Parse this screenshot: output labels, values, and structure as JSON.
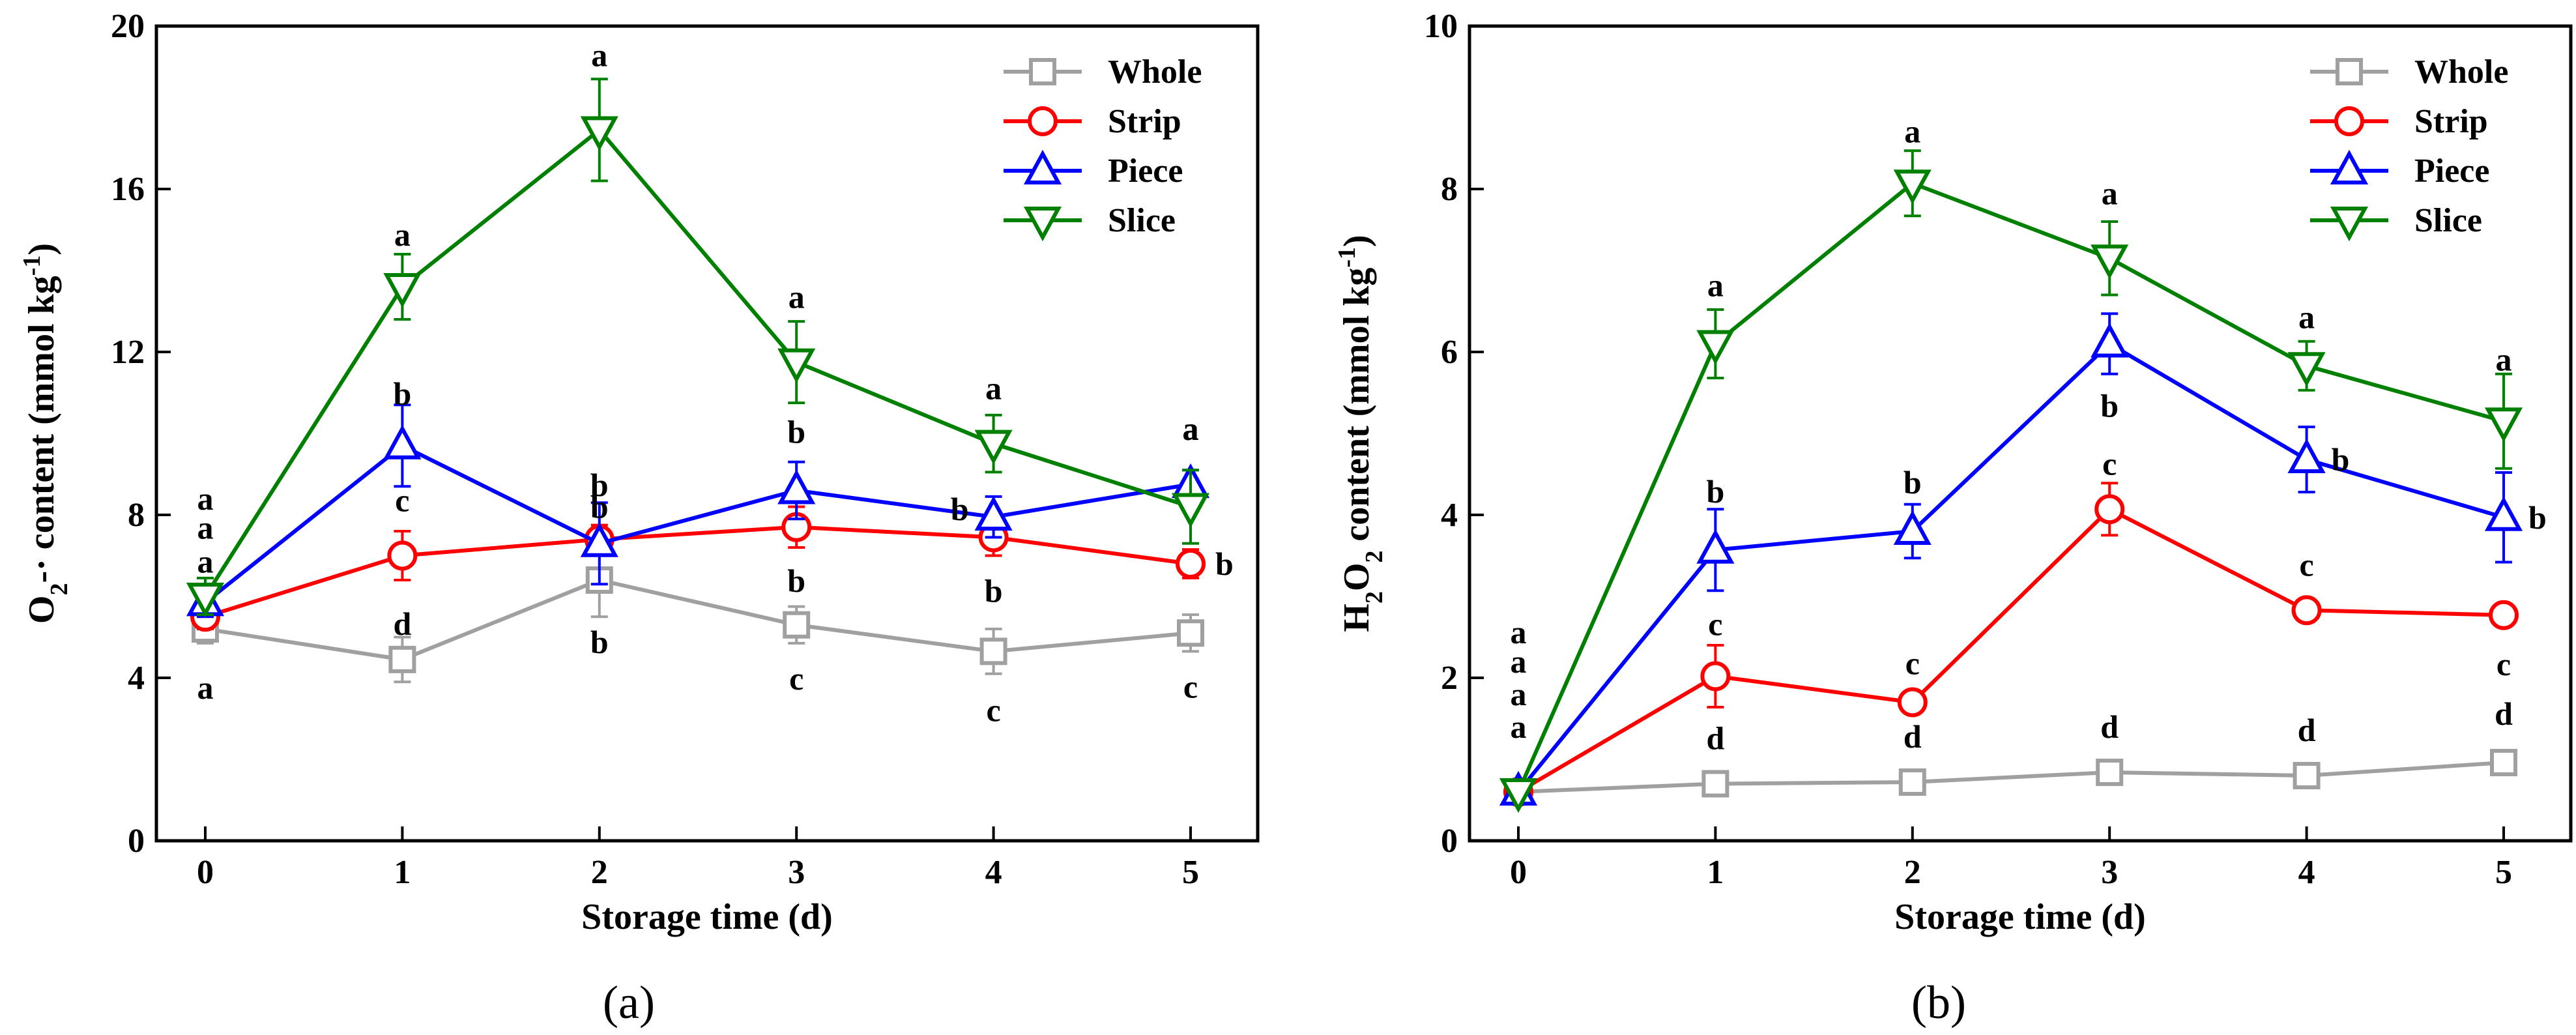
{
  "chart_data": [
    {
      "type": "line",
      "panel_label": "(a)",
      "xlabel": "Storage time (d)",
      "ylabel": "O2-· content (mmol kg-1)",
      "ylabel_parts": {
        "p1": "O",
        "sub": "2",
        "p2": "-· content (mmol kg",
        "sup": "-1",
        "p3": ")"
      },
      "x": [
        0,
        1,
        2,
        3,
        4,
        5
      ],
      "x_tick_labels": [
        "0",
        "1",
        "2",
        "3",
        "4",
        "5"
      ],
      "ylim": [
        0,
        20
      ],
      "y_ticks": [
        0,
        4,
        8,
        12,
        16,
        20
      ],
      "y_tick_labels": [
        "0",
        "4",
        "8",
        "12",
        "16",
        "20"
      ],
      "legend_position": "top-right",
      "series": [
        {
          "name": "Whole",
          "color": "#a0a0a0",
          "marker": "square",
          "values": [
            5.2,
            4.45,
            6.4,
            5.3,
            4.65,
            5.1
          ],
          "errors": [
            0.35,
            0.55,
            0.9,
            0.45,
            0.55,
            0.45
          ],
          "letters": [
            "a",
            "d",
            "b",
            "c",
            "c",
            "c"
          ]
        },
        {
          "name": "Strip",
          "color": "#ff0000",
          "marker": "circle",
          "values": [
            5.5,
            7.0,
            7.4,
            7.7,
            7.45,
            6.8
          ],
          "errors": [
            0.3,
            0.6,
            0.35,
            0.5,
            0.45,
            0.35
          ],
          "letters": [
            "a",
            "c",
            "b",
            "b",
            "b",
            "b"
          ]
        },
        {
          "name": "Piece",
          "color": "#0000ff",
          "marker": "triangle-up",
          "values": [
            5.85,
            9.7,
            7.3,
            8.6,
            7.95,
            8.75
          ],
          "errors": [
            0.35,
            1.0,
            1.0,
            0.7,
            0.5,
            0.35
          ],
          "letters": [
            "a",
            "b",
            "b",
            "b",
            "b",
            "a"
          ]
        },
        {
          "name": "Slice",
          "color": "#008000",
          "marker": "triangle-down",
          "values": [
            6.0,
            13.6,
            17.45,
            11.75,
            9.75,
            8.2
          ],
          "errors": [
            0.45,
            0.8,
            1.25,
            1.0,
            0.7,
            0.9
          ],
          "letters": [
            "a",
            "a",
            "a",
            "a",
            "a",
            "a"
          ]
        }
      ]
    },
    {
      "type": "line",
      "panel_label": "(b)",
      "xlabel": "Storage time (d)",
      "ylabel": "H2O2 content (mmol kg-1)",
      "ylabel_parts": {
        "p1": "H",
        "sub1": "2",
        "p2": "O",
        "sub2": "2",
        "p3": " content (mmol kg",
        "sup": "-1",
        "p4": ")"
      },
      "x": [
        0,
        1,
        2,
        3,
        4,
        5
      ],
      "x_tick_labels": [
        "0",
        "1",
        "2",
        "3",
        "4",
        "5"
      ],
      "ylim": [
        0,
        10
      ],
      "y_ticks": [
        0,
        2,
        4,
        6,
        8,
        10
      ],
      "y_tick_labels": [
        "0",
        "2",
        "4",
        "6",
        "8",
        "10"
      ],
      "legend_position": "top-right",
      "series": [
        {
          "name": "Whole",
          "color": "#a0a0a0",
          "marker": "square",
          "values": [
            0.6,
            0.7,
            0.72,
            0.84,
            0.8,
            0.96
          ],
          "errors": [
            0.05,
            0.06,
            0.06,
            0.06,
            0.06,
            0.08
          ],
          "letters": [
            "a",
            "d",
            "d",
            "d",
            "d",
            "d"
          ]
        },
        {
          "name": "Strip",
          "color": "#ff0000",
          "marker": "circle",
          "values": [
            0.6,
            2.02,
            1.7,
            4.07,
            2.83,
            2.77
          ],
          "errors": [
            0.05,
            0.38,
            0.1,
            0.32,
            0.12,
            0.08
          ],
          "letters": [
            "a",
            "c",
            "c",
            "c",
            "c",
            "c"
          ]
        },
        {
          "name": "Piece",
          "color": "#0000ff",
          "marker": "triangle-up",
          "values": [
            0.6,
            3.57,
            3.8,
            6.1,
            4.68,
            3.97
          ],
          "errors": [
            0.05,
            0.5,
            0.33,
            0.37,
            0.4,
            0.55
          ],
          "letters": [
            "a",
            "b",
            "b",
            "b",
            "b",
            "b"
          ]
        },
        {
          "name": "Slice",
          "color": "#008000",
          "marker": "triangle-down",
          "values": [
            0.6,
            6.1,
            8.07,
            7.15,
            5.83,
            5.15
          ],
          "errors": [
            0.05,
            0.42,
            0.4,
            0.45,
            0.3,
            0.58
          ],
          "letters": [
            "a",
            "a",
            "a",
            "a",
            "a",
            "a"
          ]
        }
      ]
    }
  ]
}
